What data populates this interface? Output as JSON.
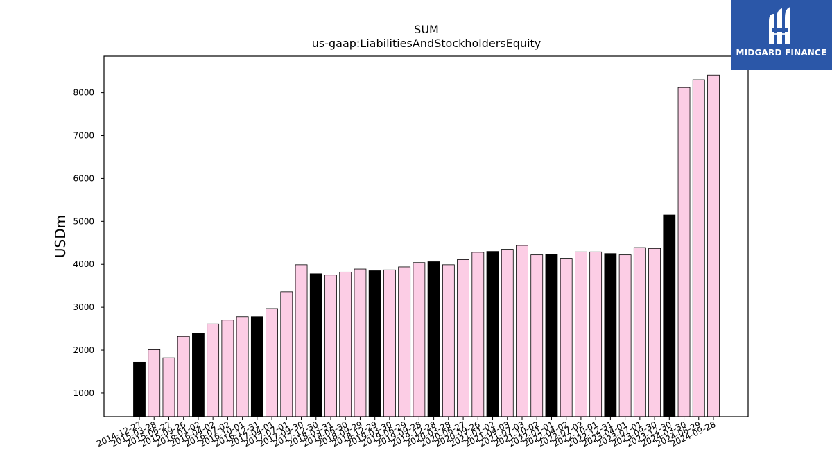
{
  "logo": {
    "text": "MIDGARD FINANCE",
    "icon": "midgard-finance-logo-icon",
    "background": "#2b57a8"
  },
  "chart_data": {
    "type": "bar",
    "title": "SUM",
    "subtitle": "us-gaap:LiabilitiesAndStockholdersEquity",
    "xlabel": "",
    "ylabel": "USDm",
    "ylim": [
      450,
      8850
    ],
    "yticks": [
      1000,
      2000,
      3000,
      4000,
      5000,
      6000,
      7000,
      8000
    ],
    "grid": false,
    "colors": {
      "quarter": "#fccde5",
      "fiscal_year_end": "#000000",
      "edge": "#000000"
    },
    "categories": [
      "2014-12-27",
      "2015-03-28",
      "2015-06-27",
      "2015-09-26",
      "2016-01-02",
      "2016-04-02",
      "2016-07-02",
      "2016-10-01",
      "2016-12-31",
      "2017-04-01",
      "2017-07-01",
      "2017-09-30",
      "2017-12-30",
      "2018-03-31",
      "2018-06-30",
      "2018-09-29",
      "2018-12-29",
      "2019-03-30",
      "2019-06-29",
      "2019-09-28",
      "2019-12-28",
      "2020-03-28",
      "2020-06-27",
      "2020-09-26",
      "2021-01-02",
      "2021-04-03",
      "2021-07-03",
      "2021-10-02",
      "2022-01-01",
      "2022-04-02",
      "2022-07-02",
      "2022-10-01",
      "2022-12-31",
      "2023-04-01",
      "2023-07-01",
      "2023-09-30",
      "2023-12-30",
      "2024-03-30",
      "2024-06-29",
      "2024-09-28"
    ],
    "values": [
      1720,
      2010,
      1820,
      2320,
      2390,
      2610,
      2700,
      2780,
      2780,
      2970,
      3360,
      3990,
      3780,
      3750,
      3820,
      3890,
      3850,
      3870,
      3940,
      4040,
      4060,
      3990,
      4110,
      4280,
      4300,
      4350,
      4440,
      4220,
      4230,
      4140,
      4290,
      4290,
      4250,
      4220,
      4390,
      4370,
      5150,
      8120,
      8300,
      8410
    ],
    "highlighted": [
      true,
      false,
      false,
      false,
      true,
      false,
      false,
      false,
      true,
      false,
      false,
      false,
      true,
      false,
      false,
      false,
      true,
      false,
      false,
      false,
      true,
      false,
      false,
      false,
      true,
      false,
      false,
      false,
      true,
      false,
      false,
      false,
      true,
      false,
      false,
      false,
      true,
      false,
      false,
      false
    ]
  }
}
